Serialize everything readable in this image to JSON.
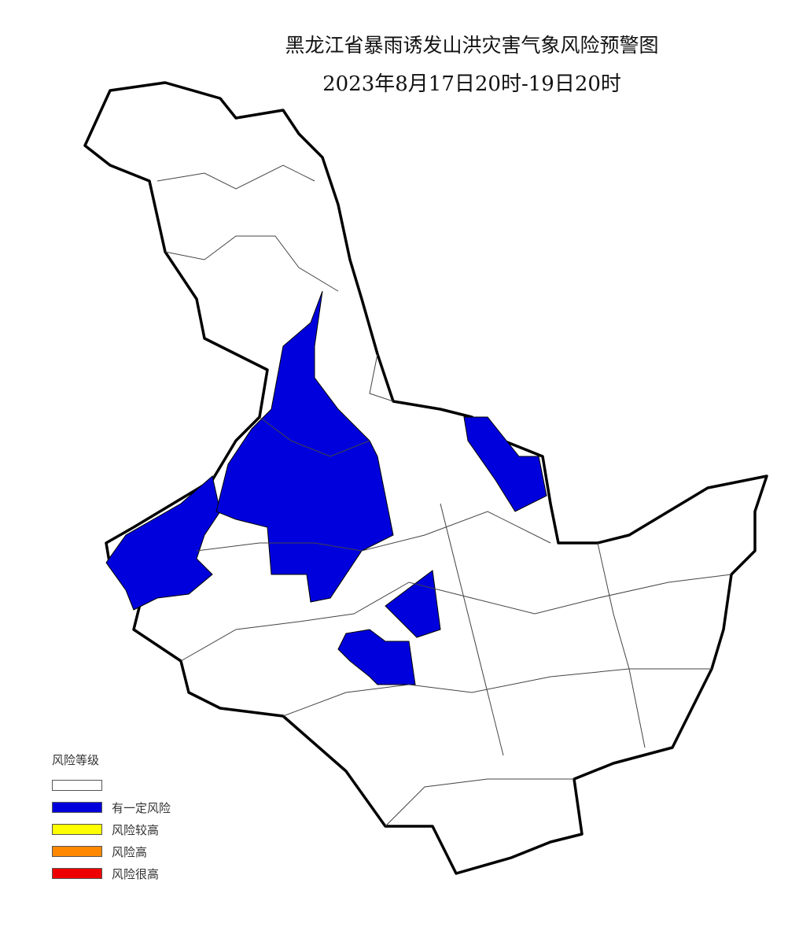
{
  "map": {
    "title": "黑龙江省暴雨诱发山洪灾害气象风险预警图",
    "subtitle": "2023年8月17日20时-19日20时",
    "region_fill_default": "#ffffff",
    "boundary_color": "#000000"
  },
  "legend": {
    "title": "风险等级",
    "items": [
      {
        "label": "",
        "color": "#ffffff"
      },
      {
        "label": "有一定风险",
        "color": "#0000dd"
      },
      {
        "label": "风险较高",
        "color": "#ffff00"
      },
      {
        "label": "风险高",
        "color": "#ff8800"
      },
      {
        "label": "风险很高",
        "color": "#ee0000"
      }
    ]
  }
}
